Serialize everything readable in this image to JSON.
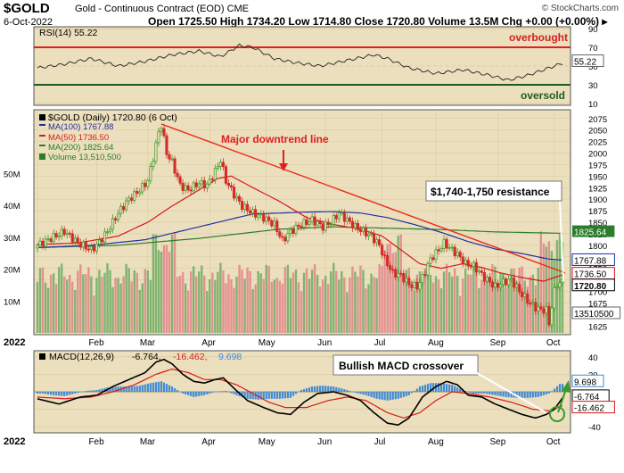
{
  "header": {
    "symbol": "$GOLD",
    "name": "Gold - Continuous Contract (EOD)  CME",
    "credit": "© StockCharts.com",
    "date": "6-Oct-2022",
    "ohlc": "Open 1725.50  High 1734.20  Low 1714.80  Close 1720.80  Volume 13.5M  Chg +0.00 (+0.00%) ▸"
  },
  "colors": {
    "panel_bg": "#ecdfbd",
    "up": "#3d9a2a",
    "down": "#d42a2a",
    "ma50": "#d81a1a",
    "ma100": "#1f30a3",
    "ma200": "#2a7d2a",
    "trendline": "#ee3020",
    "volume_up": "#7fb46f",
    "volume_down": "#e39191",
    "macd_hist": "#3e8ad6"
  },
  "chart_data": [
    {
      "type": "line",
      "panel": "rsi",
      "legend": "RSI(14) 55.22",
      "ylim": [
        10,
        90
      ],
      "ticks": [
        10,
        30,
        50,
        70,
        90
      ],
      "overbought_level": 70,
      "oversold_level": 30,
      "annotations": {
        "overbought": "overbought",
        "oversold": "oversold"
      },
      "last_value": 55.22,
      "last_label": "55.22",
      "points": [
        [
          0,
          48
        ],
        [
          10,
          52
        ],
        [
          20,
          58
        ],
        [
          30,
          50
        ],
        [
          40,
          55
        ],
        [
          50,
          62
        ],
        [
          60,
          66
        ],
        [
          68,
          60
        ],
        [
          75,
          72
        ],
        [
          80,
          70
        ],
        [
          88,
          58
        ],
        [
          95,
          54
        ],
        [
          105,
          50
        ],
        [
          115,
          56
        ],
        [
          125,
          62
        ],
        [
          130,
          58
        ],
        [
          138,
          48
        ],
        [
          148,
          42
        ],
        [
          158,
          46
        ],
        [
          168,
          40
        ],
        [
          175,
          35
        ],
        [
          182,
          40
        ],
        [
          192,
          50
        ],
        [
          200,
          58
        ],
        [
          210,
          55
        ],
        [
          218,
          46
        ],
        [
          225,
          40
        ],
        [
          232,
          36
        ],
        [
          240,
          42
        ],
        [
          250,
          48
        ],
        [
          258,
          46
        ],
        [
          265,
          38
        ],
        [
          272,
          31
        ],
        [
          278,
          30
        ],
        [
          285,
          33
        ],
        [
          292,
          30
        ],
        [
          300,
          36
        ],
        [
          308,
          48
        ],
        [
          315,
          62
        ],
        [
          322,
          66
        ],
        [
          330,
          56
        ],
        [
          338,
          62
        ],
        [
          346,
          50
        ],
        [
          352,
          54
        ],
        [
          360,
          46
        ],
        [
          368,
          40
        ],
        [
          375,
          33
        ],
        [
          382,
          36
        ],
        [
          390,
          42
        ],
        [
          398,
          50
        ],
        [
          405,
          40
        ],
        [
          411,
          32
        ],
        [
          416,
          38
        ],
        [
          420,
          58
        ],
        [
          424,
          62
        ],
        [
          429,
          55
        ]
      ]
    },
    {
      "type": "line",
      "panel": "price",
      "legend": [
        "$GOLD (Daily) 1720.80 (6 Oct)",
        "MA(100) 1767.88",
        "MA(50) 1736.50",
        "MA(200) 1825.64",
        "Volume 13,510,500"
      ],
      "ylim": [
        1610,
        2090
      ],
      "price_ticks": [
        1625,
        1650,
        1675,
        1700,
        1725,
        1750,
        1775,
        1800,
        1825,
        1850,
        1875,
        1900,
        1925,
        1950,
        1975,
        2000,
        2025,
        2050,
        2075
      ],
      "volume_ticks": [
        [
          "10M",
          10000000
        ],
        [
          "20M",
          20000000
        ],
        [
          "30M",
          30000000
        ],
        [
          "40M",
          40000000
        ],
        [
          "50M",
          50000000
        ]
      ],
      "volume_max": 70000000,
      "months": [
        [
          "2022",
          0
        ],
        [
          "Feb",
          22
        ],
        [
          "Mar",
          41
        ],
        [
          "Apr",
          64
        ],
        [
          "May",
          85
        ],
        [
          "Jun",
          107
        ],
        [
          "Jul",
          128
        ],
        [
          "Aug",
          148
        ],
        [
          "Sep",
          171
        ],
        [
          "Oct",
          192
        ]
      ],
      "price_points": [
        [
          0,
          1800
        ],
        [
          5,
          1815
        ],
        [
          10,
          1830
        ],
        [
          15,
          1805
        ],
        [
          20,
          1790
        ],
        [
          22,
          1800
        ],
        [
          26,
          1830
        ],
        [
          30,
          1870
        ],
        [
          34,
          1900
        ],
        [
          38,
          1920
        ],
        [
          41,
          1940
        ],
        [
          43,
          1990
        ],
        [
          45,
          2045
        ],
        [
          46,
          2060
        ],
        [
          48,
          2000
        ],
        [
          50,
          1980
        ],
        [
          53,
          1930
        ],
        [
          56,
          1920
        ],
        [
          60,
          1935
        ],
        [
          63,
          1930
        ],
        [
          66,
          1960
        ],
        [
          68,
          1985
        ],
        [
          70,
          1940
        ],
        [
          73,
          1910
        ],
        [
          76,
          1885
        ],
        [
          80,
          1870
        ],
        [
          84,
          1860
        ],
        [
          88,
          1845
        ],
        [
          91,
          1810
        ],
        [
          94,
          1830
        ],
        [
          98,
          1845
        ],
        [
          102,
          1855
        ],
        [
          106,
          1840
        ],
        [
          109,
          1850
        ],
        [
          112,
          1870
        ],
        [
          115,
          1855
        ],
        [
          118,
          1840
        ],
        [
          121,
          1830
        ],
        [
          124,
          1820
        ],
        [
          127,
          1800
        ],
        [
          129,
          1770
        ],
        [
          132,
          1740
        ],
        [
          135,
          1735
        ],
        [
          138,
          1715
        ],
        [
          141,
          1710
        ],
        [
          143,
          1730
        ],
        [
          146,
          1770
        ],
        [
          149,
          1790
        ],
        [
          151,
          1805
        ],
        [
          153,
          1795
        ],
        [
          156,
          1780
        ],
        [
          159,
          1760
        ],
        [
          162,
          1755
        ],
        [
          166,
          1730
        ],
        [
          170,
          1710
        ],
        [
          173,
          1720
        ],
        [
          176,
          1725
        ],
        [
          179,
          1700
        ],
        [
          182,
          1680
        ],
        [
          185,
          1665
        ],
        [
          187,
          1660
        ],
        [
          189,
          1660
        ],
        [
          190,
          1630
        ],
        [
          191,
          1668
        ],
        [
          192,
          1700
        ],
        [
          193,
          1716
        ],
        [
          195,
          1720
        ]
      ],
      "ma50": [
        [
          0,
          1802
        ],
        [
          15,
          1805
        ],
        [
          30,
          1820
        ],
        [
          41,
          1850
        ],
        [
          50,
          1885
        ],
        [
          60,
          1920
        ],
        [
          67,
          1945
        ],
        [
          72,
          1950
        ],
        [
          80,
          1925
        ],
        [
          90,
          1895
        ],
        [
          100,
          1860
        ],
        [
          110,
          1845
        ],
        [
          120,
          1835
        ],
        [
          128,
          1820
        ],
        [
          135,
          1790
        ],
        [
          142,
          1760
        ],
        [
          150,
          1750
        ],
        [
          158,
          1760
        ],
        [
          165,
          1752
        ],
        [
          172,
          1740
        ],
        [
          180,
          1730
        ],
        [
          188,
          1722
        ],
        [
          195,
          1736
        ]
      ],
      "ma100": [
        [
          0,
          1795
        ],
        [
          20,
          1800
        ],
        [
          40,
          1812
        ],
        [
          60,
          1840
        ],
        [
          80,
          1868
        ],
        [
          100,
          1872
        ],
        [
          110,
          1873
        ],
        [
          120,
          1870
        ],
        [
          130,
          1860
        ],
        [
          140,
          1845
        ],
        [
          150,
          1828
        ],
        [
          160,
          1808
        ],
        [
          170,
          1792
        ],
        [
          180,
          1782
        ],
        [
          190,
          1770
        ],
        [
          195,
          1768
        ]
      ],
      "ma200": [
        [
          0,
          1795
        ],
        [
          30,
          1800
        ],
        [
          60,
          1815
        ],
        [
          90,
          1835
        ],
        [
          110,
          1840
        ],
        [
          130,
          1837
        ],
        [
          150,
          1834
        ],
        [
          170,
          1829
        ],
        [
          195,
          1826
        ]
      ],
      "trendline": [
        [
          46,
          2063
        ],
        [
          196,
          1740
        ]
      ],
      "resistance_label": "$1,740-1,750 resistance",
      "trend_label": "Major downtrend line",
      "last_labels": {
        "close": "1720.80",
        "ma50": "1736.50",
        "ma100": "1767.88",
        "ma200": "1825.64",
        "volume": "13510500"
      }
    },
    {
      "type": "line",
      "panel": "macd",
      "legend": [
        "MACD(12,26,9)",
        "-6.764,",
        "-16.462,",
        "9.698"
      ],
      "ylim": [
        -45,
        45
      ],
      "ticks": [
        -40,
        -20,
        0,
        20,
        40
      ],
      "annotation": "Bullish MACD crossover",
      "last_labels": {
        "hist": "9.698",
        "macd": "-6.764",
        "signal": "-16.462"
      },
      "macd": [
        [
          0,
          -8
        ],
        [
          8,
          -14
        ],
        [
          16,
          -6
        ],
        [
          22,
          -4
        ],
        [
          28,
          6
        ],
        [
          34,
          14
        ],
        [
          40,
          22
        ],
        [
          44,
          34
        ],
        [
          47,
          37
        ],
        [
          50,
          32
        ],
        [
          54,
          20
        ],
        [
          58,
          12
        ],
        [
          62,
          10
        ],
        [
          66,
          14
        ],
        [
          69,
          16
        ],
        [
          73,
          4
        ],
        [
          78,
          -10
        ],
        [
          84,
          -18
        ],
        [
          89,
          -24
        ],
        [
          94,
          -26
        ],
        [
          99,
          -12
        ],
        [
          104,
          -2
        ],
        [
          110,
          0
        ],
        [
          115,
          -4
        ],
        [
          120,
          -10
        ],
        [
          125,
          -24
        ],
        [
          130,
          -36
        ],
        [
          134,
          -38
        ],
        [
          138,
          -30
        ],
        [
          143,
          -6
        ],
        [
          148,
          6
        ],
        [
          152,
          12
        ],
        [
          156,
          8
        ],
        [
          160,
          -4
        ],
        [
          165,
          -6
        ],
        [
          170,
          -14
        ],
        [
          175,
          -20
        ],
        [
          180,
          -26
        ],
        [
          185,
          -30
        ],
        [
          189,
          -26
        ],
        [
          192,
          -20
        ],
        [
          195,
          -7
        ]
      ],
      "signal": [
        [
          0,
          -6
        ],
        [
          10,
          -8
        ],
        [
          20,
          -6
        ],
        [
          28,
          0
        ],
        [
          36,
          8
        ],
        [
          44,
          20
        ],
        [
          50,
          26
        ],
        [
          56,
          22
        ],
        [
          62,
          14
        ],
        [
          68,
          14
        ],
        [
          74,
          8
        ],
        [
          80,
          -2
        ],
        [
          86,
          -12
        ],
        [
          92,
          -18
        ],
        [
          100,
          -18
        ],
        [
          108,
          -10
        ],
        [
          115,
          -6
        ],
        [
          122,
          -10
        ],
        [
          130,
          -24
        ],
        [
          136,
          -30
        ],
        [
          142,
          -24
        ],
        [
          148,
          -10
        ],
        [
          154,
          0
        ],
        [
          160,
          -2
        ],
        [
          168,
          -6
        ],
        [
          176,
          -12
        ],
        [
          184,
          -20
        ],
        [
          190,
          -22
        ],
        [
          195,
          -16
        ]
      ],
      "hist": [
        [
          2,
          -2
        ],
        [
          6,
          -4
        ],
        [
          10,
          -5
        ],
        [
          14,
          -2
        ],
        [
          18,
          1
        ],
        [
          22,
          2
        ],
        [
          26,
          5
        ],
        [
          30,
          6
        ],
        [
          34,
          6
        ],
        [
          38,
          7
        ],
        [
          42,
          10
        ],
        [
          46,
          12
        ],
        [
          50,
          6
        ],
        [
          54,
          -2
        ],
        [
          58,
          -6
        ],
        [
          62,
          -4
        ],
        [
          66,
          0
        ],
        [
          70,
          1
        ],
        [
          74,
          -4
        ],
        [
          78,
          -8
        ],
        [
          82,
          -9
        ],
        [
          86,
          -8
        ],
        [
          90,
          -8
        ],
        [
          94,
          -7
        ],
        [
          98,
          2
        ],
        [
          102,
          6
        ],
        [
          106,
          7
        ],
        [
          110,
          6
        ],
        [
          114,
          3
        ],
        [
          118,
          -1
        ],
        [
          122,
          -4
        ],
        [
          126,
          -8
        ],
        [
          130,
          -10
        ],
        [
          134,
          -8
        ],
        [
          138,
          -4
        ],
        [
          142,
          6
        ],
        [
          146,
          10
        ],
        [
          150,
          10
        ],
        [
          154,
          8
        ],
        [
          158,
          2
        ],
        [
          162,
          -2
        ],
        [
          166,
          -2
        ],
        [
          170,
          -4
        ],
        [
          174,
          -6
        ],
        [
          178,
          -7
        ],
        [
          182,
          -7
        ],
        [
          186,
          -6
        ],
        [
          190,
          -2
        ],
        [
          194,
          9
        ]
      ]
    }
  ]
}
